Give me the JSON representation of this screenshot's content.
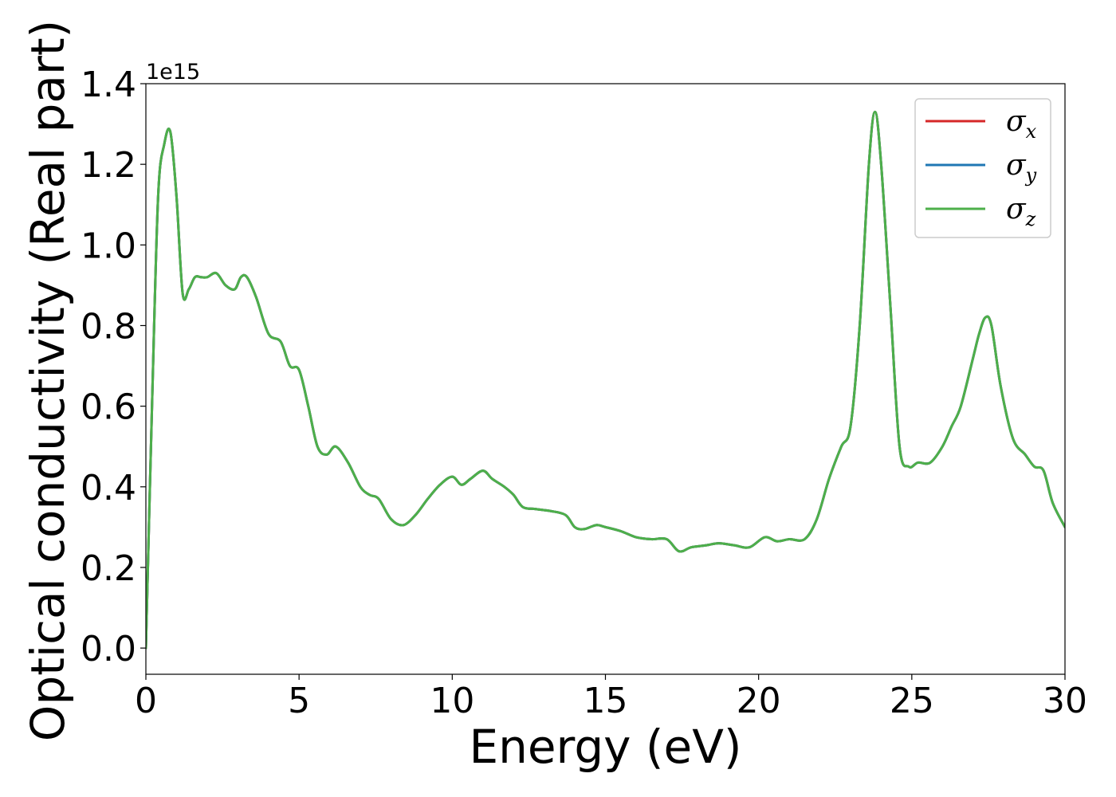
{
  "chart_data": {
    "type": "line",
    "xlabel": "Energy (eV)",
    "ylabel": "Optical conductivity (Real part)",
    "y_offset_label": "1e15",
    "xlim": [
      0,
      30
    ],
    "ylim": [
      -0.065,
      1.4
    ],
    "y_scale_factor": 1000000000000000.0,
    "x_ticks": [
      0,
      5,
      10,
      15,
      20,
      25,
      30
    ],
    "x_tick_labels": [
      "0",
      "5",
      "10",
      "15",
      "20",
      "25",
      "30"
    ],
    "y_ticks": [
      0.0,
      0.2,
      0.4,
      0.6,
      0.8,
      1.0,
      1.2,
      1.4
    ],
    "y_tick_labels": [
      "0.0",
      "0.2",
      "0.4",
      "0.6",
      "0.8",
      "1.0",
      "1.2",
      "1.4"
    ],
    "grid": false,
    "legend_position": "top-right",
    "x": [
      0,
      0.2,
      0.4,
      0.6,
      0.8,
      1.0,
      1.2,
      1.4,
      1.6,
      1.8,
      2.0,
      2.3,
      2.6,
      2.9,
      3.1,
      3.3,
      3.6,
      4.0,
      4.4,
      4.7,
      5.0,
      5.3,
      5.6,
      5.9,
      6.2,
      6.6,
      7.0,
      7.3,
      7.6,
      8.0,
      8.4,
      8.8,
      9.2,
      9.6,
      10.0,
      10.3,
      10.6,
      11.0,
      11.3,
      11.7,
      12.0,
      12.3,
      12.7,
      13.2,
      13.7,
      14.0,
      14.3,
      14.7,
      15.0,
      15.5,
      16.0,
      16.5,
      17.0,
      17.4,
      17.8,
      18.3,
      18.7,
      19.2,
      19.7,
      20.2,
      20.6,
      21.0,
      21.5,
      21.9,
      22.3,
      22.7,
      23.0,
      23.3,
      23.6,
      23.8,
      24.0,
      24.3,
      24.6,
      24.9,
      25.2,
      25.6,
      26.0,
      26.3,
      26.6,
      27.0,
      27.2,
      27.4,
      27.6,
      27.9,
      28.3,
      28.7,
      29.0,
      29.3,
      29.6,
      30.0
    ],
    "series": [
      {
        "name": "σx",
        "color": "#d62728",
        "values": [
          0.0,
          0.6,
          1.12,
          1.25,
          1.28,
          1.12,
          0.88,
          0.89,
          0.92,
          0.92,
          0.92,
          0.93,
          0.9,
          0.89,
          0.92,
          0.92,
          0.87,
          0.78,
          0.76,
          0.7,
          0.69,
          0.6,
          0.5,
          0.48,
          0.5,
          0.46,
          0.4,
          0.38,
          0.37,
          0.32,
          0.305,
          0.33,
          0.37,
          0.405,
          0.425,
          0.405,
          0.42,
          0.44,
          0.42,
          0.4,
          0.38,
          0.35,
          0.345,
          0.34,
          0.33,
          0.3,
          0.295,
          0.305,
          0.3,
          0.29,
          0.275,
          0.27,
          0.27,
          0.24,
          0.25,
          0.255,
          0.26,
          0.255,
          0.25,
          0.275,
          0.265,
          0.27,
          0.27,
          0.32,
          0.42,
          0.5,
          0.55,
          0.8,
          1.2,
          1.33,
          1.2,
          0.85,
          0.5,
          0.45,
          0.46,
          0.46,
          0.5,
          0.55,
          0.6,
          0.72,
          0.78,
          0.82,
          0.8,
          0.65,
          0.52,
          0.48,
          0.45,
          0.44,
          0.36,
          0.3
        ]
      },
      {
        "name": "σy",
        "color": "#1f77b4",
        "values": [
          0.0,
          0.6,
          1.12,
          1.25,
          1.28,
          1.12,
          0.88,
          0.89,
          0.92,
          0.92,
          0.92,
          0.93,
          0.9,
          0.89,
          0.92,
          0.92,
          0.87,
          0.78,
          0.76,
          0.7,
          0.69,
          0.6,
          0.5,
          0.48,
          0.5,
          0.46,
          0.4,
          0.38,
          0.37,
          0.32,
          0.305,
          0.33,
          0.37,
          0.405,
          0.425,
          0.405,
          0.42,
          0.44,
          0.42,
          0.4,
          0.38,
          0.35,
          0.345,
          0.34,
          0.33,
          0.3,
          0.295,
          0.305,
          0.3,
          0.29,
          0.275,
          0.27,
          0.27,
          0.24,
          0.25,
          0.255,
          0.26,
          0.255,
          0.25,
          0.275,
          0.265,
          0.27,
          0.27,
          0.32,
          0.42,
          0.5,
          0.55,
          0.8,
          1.2,
          1.33,
          1.2,
          0.85,
          0.5,
          0.45,
          0.46,
          0.46,
          0.5,
          0.55,
          0.6,
          0.72,
          0.78,
          0.82,
          0.8,
          0.65,
          0.52,
          0.48,
          0.45,
          0.44,
          0.36,
          0.3
        ]
      },
      {
        "name": "σz",
        "color": "#4daf4a",
        "values": [
          0.0,
          0.6,
          1.12,
          1.25,
          1.28,
          1.12,
          0.88,
          0.89,
          0.92,
          0.92,
          0.92,
          0.93,
          0.9,
          0.89,
          0.92,
          0.92,
          0.87,
          0.78,
          0.76,
          0.7,
          0.69,
          0.6,
          0.5,
          0.48,
          0.5,
          0.46,
          0.4,
          0.38,
          0.37,
          0.32,
          0.305,
          0.33,
          0.37,
          0.405,
          0.425,
          0.405,
          0.42,
          0.44,
          0.42,
          0.4,
          0.38,
          0.35,
          0.345,
          0.34,
          0.33,
          0.3,
          0.295,
          0.305,
          0.3,
          0.29,
          0.275,
          0.27,
          0.27,
          0.24,
          0.25,
          0.255,
          0.26,
          0.255,
          0.25,
          0.275,
          0.265,
          0.27,
          0.27,
          0.32,
          0.42,
          0.5,
          0.55,
          0.8,
          1.2,
          1.33,
          1.2,
          0.85,
          0.5,
          0.45,
          0.46,
          0.46,
          0.5,
          0.55,
          0.6,
          0.72,
          0.78,
          0.82,
          0.8,
          0.65,
          0.52,
          0.48,
          0.45,
          0.44,
          0.36,
          0.3
        ]
      }
    ],
    "legend_entries": [
      {
        "symbol": "σ",
        "subscript": "x",
        "color": "#d62728"
      },
      {
        "symbol": "σ",
        "subscript": "y",
        "color": "#1f77b4"
      },
      {
        "symbol": "σ",
        "subscript": "z",
        "color": "#4daf4a"
      }
    ]
  }
}
